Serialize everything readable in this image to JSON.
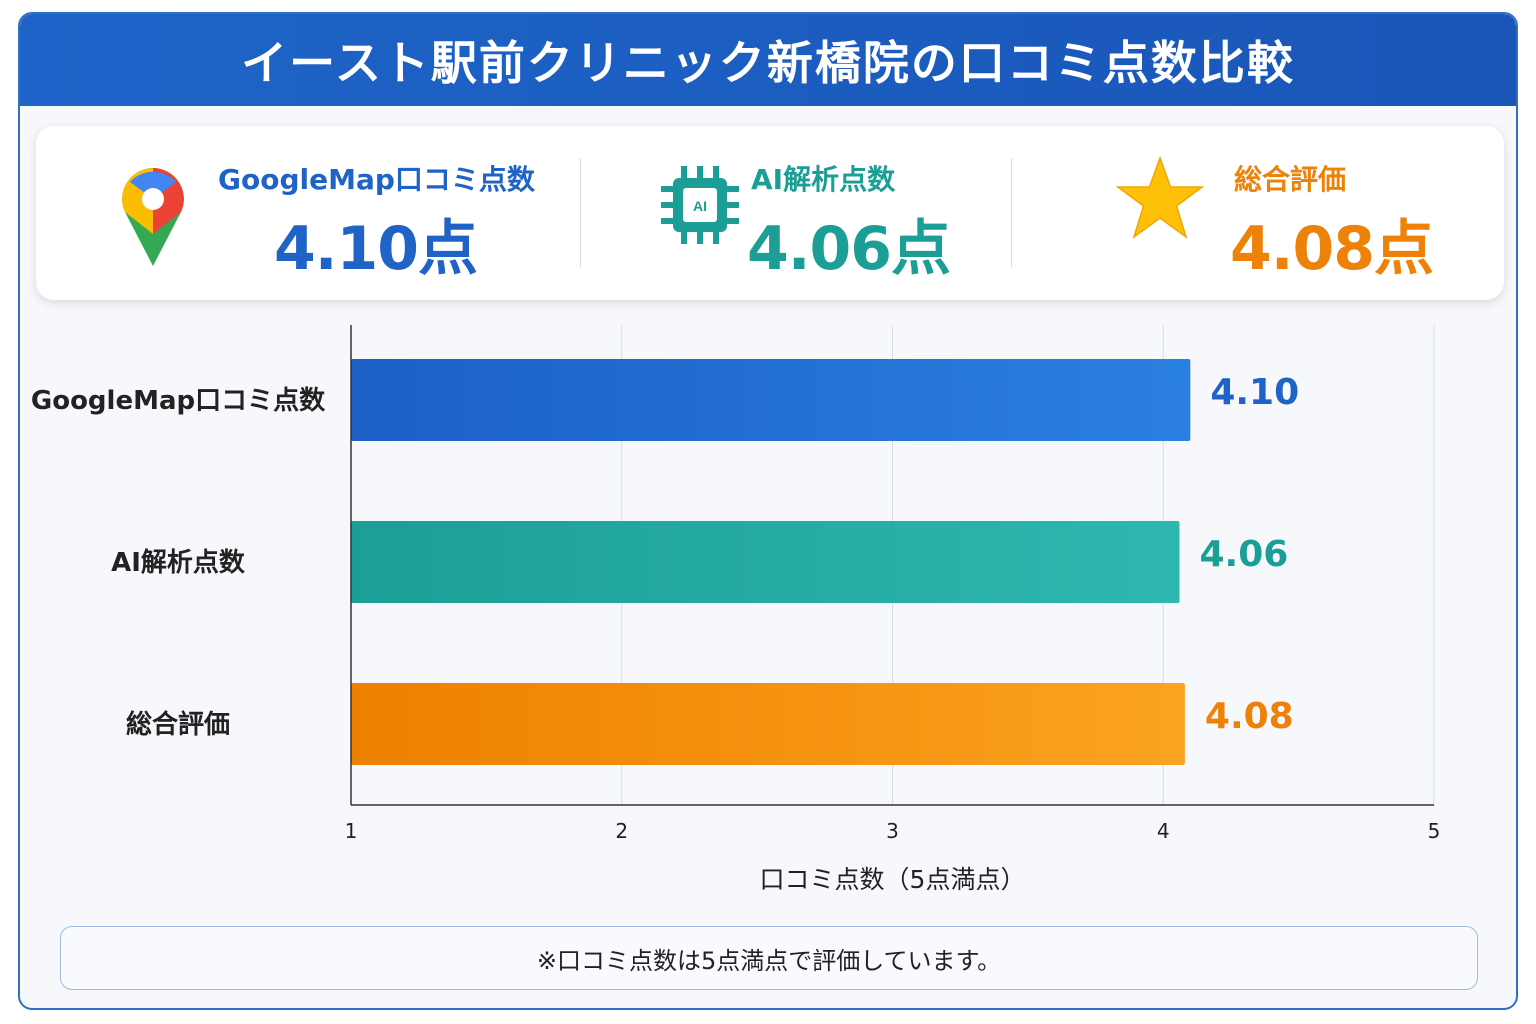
{
  "title": "イースト駅前クリニック新橋院の口コミ点数比較",
  "summary": [
    {
      "label": "GoogleMap口コミ点数",
      "value": "4.10点",
      "icon": "map-pin-icon",
      "color": "#1f63c6"
    },
    {
      "label": "AI解析点数",
      "value": "4.06点",
      "icon": "ai-chip-icon",
      "color": "#1b9e96"
    },
    {
      "label": "総合評価",
      "value": "4.08点",
      "icon": "star-icon",
      "color": "#ee8208"
    }
  ],
  "chart_data": {
    "type": "bar",
    "orientation": "horizontal",
    "categories": [
      "GoogleMap口コミ点数",
      "AI解析点数",
      "総合評価"
    ],
    "values": [
      4.1,
      4.06,
      4.08
    ],
    "value_labels": [
      "4.10",
      "4.06",
      "4.08"
    ],
    "colors": [
      "#1f63c6",
      "#1b9e96",
      "#ee8208"
    ],
    "xlabel": "口コミ点数（5点満点）",
    "xlim": [
      1,
      5
    ],
    "xticks": [
      "1",
      "2",
      "3",
      "4",
      "5"
    ],
    "grid": true
  },
  "footnote": "※口コミ点数は5点満点で評価しています。"
}
